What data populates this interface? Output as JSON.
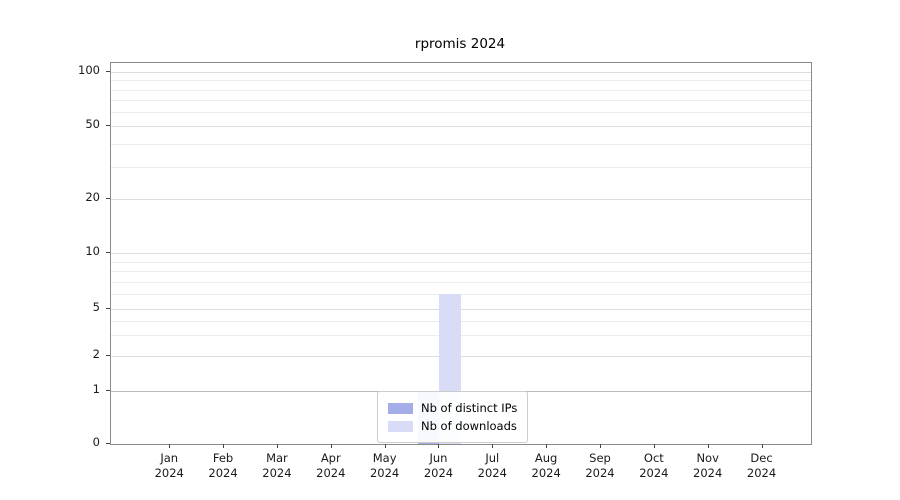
{
  "chart_data": {
    "type": "bar",
    "title": "rpromis 2024",
    "categories": [
      [
        "Jan",
        "2024"
      ],
      [
        "Feb",
        "2024"
      ],
      [
        "Mar",
        "2024"
      ],
      [
        "Apr",
        "2024"
      ],
      [
        "May",
        "2024"
      ],
      [
        "Jun",
        "2024"
      ],
      [
        "Jul",
        "2024"
      ],
      [
        "Aug",
        "2024"
      ],
      [
        "Sep",
        "2024"
      ],
      [
        "Oct",
        "2024"
      ],
      [
        "Nov",
        "2024"
      ],
      [
        "Dec",
        "2024"
      ]
    ],
    "series": [
      {
        "name": "Nb of distinct IPs",
        "color": "#a5ade8",
        "values": [
          0,
          0,
          0,
          0,
          0,
          1,
          0,
          0,
          0,
          0,
          0,
          0
        ]
      },
      {
        "name": "Nb of downloads",
        "color": "#d8dcf6",
        "values": [
          0,
          0,
          0,
          0,
          0,
          6,
          0,
          0,
          0,
          0,
          0,
          0
        ]
      }
    ],
    "yticks": [
      0,
      1,
      2,
      5,
      10,
      20,
      50,
      100
    ],
    "yscale": "symlog",
    "ylim": [
      0,
      110
    ],
    "grid": "horizontal major and minor",
    "legend_position": "lower center"
  }
}
